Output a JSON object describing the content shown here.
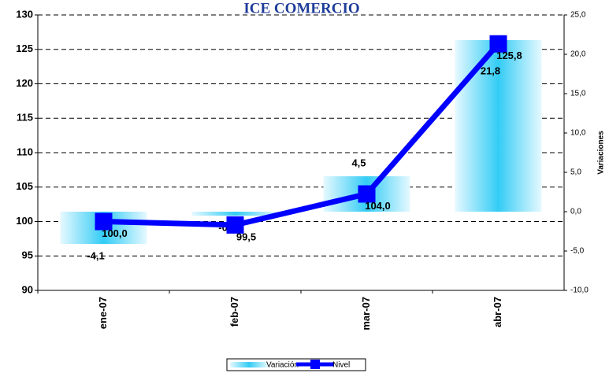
{
  "chart_data": {
    "type": "bar-line",
    "title": "ICE COMERCIO",
    "y2_label": "Variaciones",
    "categories": [
      "ene-07",
      "feb-07",
      "mar-07",
      "abr-07"
    ],
    "series": [
      {
        "name": "Variación",
        "type": "bar",
        "axis": "y2",
        "color": "#33ccf5",
        "values": [
          -4.1,
          -0.5,
          4.5,
          21.8
        ],
        "value_labels": [
          "-4,1",
          "-0,5",
          "4,5",
          "21,8"
        ]
      },
      {
        "name": "Nivel",
        "type": "line",
        "axis": "y",
        "color": "#0000ff",
        "values": [
          100.0,
          99.5,
          104.0,
          125.8
        ],
        "value_labels": [
          "100,0",
          "99,5",
          "104,0",
          "125,8"
        ]
      }
    ],
    "ylim": [
      90,
      130
    ],
    "yticks": [
      90,
      95,
      100,
      105,
      110,
      115,
      120,
      125,
      130
    ],
    "y2lim": [
      -10,
      25
    ],
    "y2ticks": [
      {
        "value": -10,
        "label": "-10,0"
      },
      {
        "value": -5,
        "label": "-5,0"
      },
      {
        "value": 0,
        "label": "0,0"
      },
      {
        "value": 5,
        "label": "5,0"
      },
      {
        "value": 10,
        "label": "10,0"
      },
      {
        "value": 15,
        "label": "15,0"
      },
      {
        "value": 20,
        "label": "20,0"
      },
      {
        "value": 25,
        "label": "25,0"
      }
    ],
    "grid": true
  }
}
